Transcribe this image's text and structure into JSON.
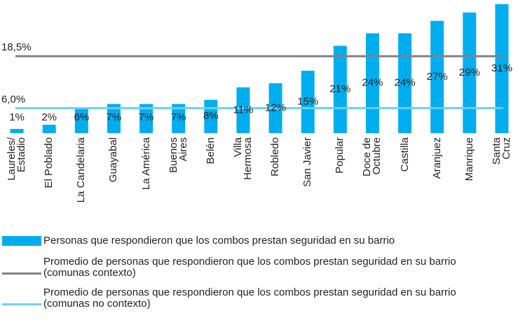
{
  "chart_data": {
    "type": "bar",
    "categories": [
      "Laureles/\nEstadio",
      "El Poblado",
      "La Candelaria",
      "Guayabal",
      "La América",
      "Buenos\nAires",
      "Belén",
      "Villa\nHermosa",
      "Robledo",
      "San Javier",
      "Popular",
      "Doce de\nOctubre",
      "Castilla",
      "Aranjuez",
      "Manrique",
      "Santa\nCruz"
    ],
    "series": [
      {
        "name": "Personas que respondieron que los combos prestan seguridad en su barrio",
        "color": "#00aeef",
        "values": [
          1,
          2,
          6,
          7,
          7,
          7,
          8,
          11,
          12,
          15,
          21,
          24,
          24,
          27,
          29,
          31
        ],
        "value_labels": [
          "1%",
          "2%",
          "6%",
          "7%",
          "7%",
          "7%",
          "8%",
          "11%",
          "12%",
          "15%",
          "21%",
          "24%",
          "24%",
          "27%",
          "29%",
          "31%"
        ]
      }
    ],
    "reference_lines": [
      {
        "name": "Promedio de personas que respondieron que los combos prestan seguridad en su barrio\n(comunas contexto)",
        "value": 18.5,
        "label": "18,5%",
        "color": "#808285"
      },
      {
        "name": "Promedio de personas que respondieron que los combos prestan seguridad en su barrio\n(comunas no contexto)",
        "value": 6.0,
        "label": "6,0%",
        "color": "#6dcff6"
      }
    ],
    "ylim": [
      0,
      31
    ]
  }
}
